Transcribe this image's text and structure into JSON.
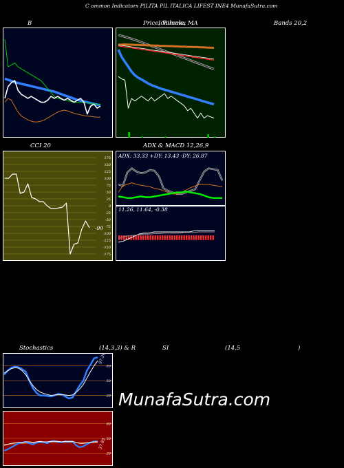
{
  "header": {
    "title": "C                    ommon  Indicators PILITA PIL ITALICA LIFEST INE4  MunafaSutra.com"
  },
  "labels": {
    "bollinger": "B",
    "price": "Price,  Volume,  MA",
    "price_overlap": "Ichimoku",
    "bands": "Bands 20,2",
    "cci": "CCI 20",
    "adx_macd": "ADX  & MACD 12,26,9",
    "stoch_a": "Stochastics",
    "stoch_b": "(14,3,3) & R",
    "stoch_c": "SI",
    "stoch_d": "(14,5",
    "stoch_e": ")",
    "adx_values": "ADX: 33.33  +DY: 13.43 -DY: 26.87",
    "macd_values": "11.26,  11.64,  -0.38",
    "cci_value": "-90",
    "stoch_value": "97.26",
    "rsi_value": "37.85"
  },
  "watermark": "MunafaSutra.com",
  "colors": {
    "panel_navy": "#000522",
    "panel_green": "#002200",
    "panel_olive": "#4a4a0a",
    "panel_red": "#8a0000",
    "blue": "#3080ff",
    "white": "#ffffff",
    "green": "#00cc00",
    "orange": "#d07020",
    "red": "#ff2a2a"
  },
  "chart_data": [
    {
      "name": "bollinger",
      "type": "line",
      "series": [
        {
          "values": [
            85,
            84.7,
            84.4,
            84.1,
            83.9,
            83.7,
            83.5,
            83.3,
            83.1,
            82.9,
            82.7,
            82.5,
            82.3,
            82.1,
            81.9,
            81.7,
            81.4,
            81.1,
            80.8,
            80.5,
            80.2,
            79.9,
            79.6,
            79.4,
            79.2,
            79.0,
            78.8,
            78.6,
            78.4,
            78.2
          ]
        },
        {
          "values": [
            95,
            88,
            88.5,
            89,
            88,
            87.5,
            87,
            86.5,
            86,
            85.5,
            85,
            84.5,
            83.5,
            82.5,
            81.5,
            80.5,
            80,
            79.8,
            79.6,
            79.4,
            79.2,
            79,
            79,
            79,
            78.9,
            78.8,
            78.7,
            78.6,
            78.5,
            78.5
          ]
        },
        {
          "values": [
            79,
            80,
            79.5,
            78,
            76.5,
            75.5,
            75,
            74.5,
            74.2,
            74,
            74,
            74.2,
            74.5,
            75,
            75.5,
            76,
            76.5,
            76.8,
            77,
            76.8,
            76.5,
            76.2,
            76,
            75.8,
            75.6,
            75.5,
            75.4,
            75.3,
            75.2,
            75.2
          ]
        },
        {
          "values": [
            80,
            83,
            84,
            84.5,
            82,
            81,
            80.5,
            80,
            80.5,
            80,
            79.5,
            79,
            79,
            79.5,
            80.5,
            80,
            80.5,
            80,
            79.5,
            80,
            79.5,
            79,
            79.5,
            80,
            79,
            76,
            78,
            78.5,
            77.5,
            78
          ]
        }
      ]
    },
    {
      "name": "price-volume-ma",
      "type": "line",
      "series": [
        {
          "values": [
            97,
            96.6,
            96.2,
            95.8,
            95.4,
            95,
            94.5,
            94,
            93.5,
            93,
            92.5,
            92,
            91.5,
            91,
            90.5,
            90,
            89.5,
            89,
            88.5,
            88,
            87.5,
            87,
            86.5,
            86,
            85.5,
            85,
            84.5,
            84,
            83.5,
            83
          ]
        },
        {
          "values": [
            93,
            93,
            93.1,
            93,
            93,
            92.9,
            92.9,
            92.8,
            92.8,
            92.7,
            92.7,
            92.6,
            92.6,
            92.5,
            92.5,
            92.4,
            92.4,
            92.3,
            92.3,
            92.2,
            92.2,
            92.1,
            92.1,
            92,
            92,
            91.9,
            91.9,
            91.8,
            91.8,
            91.7
          ]
        },
        {
          "values": [
            92.5,
            92.3,
            92.1,
            91.9,
            91.7,
            91.5,
            91.3,
            91.1,
            90.9,
            90.7,
            90.5,
            90.3,
            90.1,
            89.9,
            89.7,
            89.5,
            89.3,
            89.1,
            88.9,
            88.7,
            88.5,
            88.3,
            88.1,
            87.9,
            87.7,
            87.5,
            87.3,
            87.1,
            86.9,
            86.7
          ]
        },
        {
          "values": [
            91,
            88,
            86,
            84,
            82,
            80.5,
            79.5,
            78.8,
            78,
            77.2,
            76.5,
            76,
            75.5,
            75,
            74.6,
            74.2,
            73.8,
            73.4,
            73,
            72.6,
            72.2,
            71.8,
            71.4,
            71,
            70.6,
            70.2,
            69.8,
            69.4,
            69,
            68.6
          ]
        },
        {
          "values": [
            80,
            79,
            78.5,
            67,
            71,
            70,
            71,
            72,
            71,
            70,
            71.5,
            70,
            71,
            72,
            73,
            71,
            72,
            71,
            70,
            69,
            68,
            66,
            67,
            65,
            63,
            65,
            63,
            64,
            63.5,
            63
          ]
        }
      ],
      "volume": [
        0,
        0,
        0,
        5,
        0,
        0,
        0,
        1,
        0,
        0,
        0,
        0,
        0,
        0,
        1,
        0,
        0,
        0,
        0,
        0,
        0,
        0,
        0,
        0,
        0,
        0,
        0,
        3,
        0,
        1
      ]
    },
    {
      "name": "cci",
      "type": "line",
      "ylim": [
        -175,
        175
      ],
      "yticks": [
        175,
        150,
        125,
        100,
        75,
        50,
        25,
        0,
        -25,
        -50,
        -75,
        -100,
        -125,
        -150,
        -175
      ],
      "values": [
        100,
        100,
        115,
        115,
        45,
        50,
        80,
        30,
        25,
        15,
        15,
        0,
        -10,
        -10,
        -8,
        -5,
        10,
        -175,
        -140,
        -135,
        -85,
        -55,
        -80
      ]
    },
    {
      "name": "adx",
      "type": "line",
      "series": [
        {
          "values": [
            30,
            28,
            45,
            50,
            46,
            44,
            45,
            48,
            47,
            40,
            25,
            22,
            20,
            18,
            18,
            20,
            22,
            24,
            35,
            46,
            50,
            49,
            48,
            35
          ]
        },
        {
          "values": [
            20,
            28,
            30,
            32,
            30,
            29,
            28,
            27,
            25,
            24,
            22,
            20,
            18,
            18,
            20,
            23,
            26,
            28,
            30,
            30,
            30,
            29,
            28,
            27
          ]
        },
        {
          "values": [
            15,
            14,
            13,
            13,
            14,
            15,
            14,
            14,
            15,
            16,
            17,
            18,
            19,
            20,
            20,
            21,
            20,
            19,
            18,
            16,
            14,
            13,
            13,
            13
          ]
        }
      ]
    },
    {
      "name": "macd",
      "type": "bar",
      "histogram": [
        -0.4,
        -0.4,
        -0.4,
        -0.4,
        -0.4,
        -0.4,
        -0.4,
        -0.4,
        -0.4,
        -0.4,
        -0.4,
        -0.4,
        -0.4,
        -0.4,
        -0.4,
        -0.4,
        -0.4,
        -0.4,
        -0.4,
        -0.4,
        -0.4,
        -0.4,
        -0.4,
        -0.4,
        -0.4,
        -0.4,
        -0.4,
        -0.4,
        -0.4,
        -0.4,
        -0.4,
        -0.4,
        -0.4,
        -0.4,
        -0.4,
        -0.4,
        -0.4,
        -0.4,
        -0.4,
        -0.4
      ],
      "series": [
        {
          "values": [
            -0.6,
            -0.5,
            -0.3,
            -0.1,
            0.1,
            0.2,
            0.2,
            0.3,
            0.3,
            0.3,
            0.3,
            0.3,
            0.3,
            0.3,
            0.3,
            0.4,
            0.4,
            0.4,
            0.4,
            0.4
          ]
        },
        {
          "values": [
            -0.3,
            -0.1,
            -0.05,
            0,
            0.05,
            0.1,
            0.1,
            0.15,
            0.15,
            0.2,
            0.2,
            0.2,
            0.2,
            0.25,
            0.25,
            0.25,
            0.3,
            0.3,
            0.3,
            0.3
          ]
        }
      ]
    },
    {
      "name": "stochastics",
      "type": "line",
      "ylim": [
        0,
        100
      ],
      "yticks": [
        80,
        50,
        20
      ],
      "series": [
        {
          "values": [
            62,
            70,
            76,
            78,
            77,
            73,
            68,
            50,
            35,
            25,
            20,
            20,
            19,
            18,
            20,
            23,
            22,
            18,
            14,
            16,
            28,
            40,
            50,
            70,
            82,
            95,
            97
          ]
        },
        {
          "values": [
            65,
            70,
            74,
            76,
            75,
            70,
            62,
            50,
            40,
            32,
            27,
            24,
            22,
            20,
            21,
            22,
            22,
            21,
            20,
            21,
            26,
            33,
            42,
            55,
            68,
            80,
            90
          ]
        }
      ]
    },
    {
      "name": "rsi",
      "type": "line",
      "ylim": [
        0,
        100
      ],
      "yticks": [
        80,
        50,
        20
      ],
      "series": [
        {
          "values": [
            38,
            38,
            38.5,
            39,
            39.5,
            40,
            40,
            40.5,
            41,
            41,
            41,
            41.5,
            41.5,
            41.5,
            41.5,
            41.5,
            41.5,
            41.5,
            41.5,
            41.5,
            41.5,
            41.5,
            41.5,
            41.5,
            41.5,
            41.5,
            41.5
          ]
        },
        {
          "values": [
            25,
            28,
            32,
            36,
            40,
            42,
            43,
            40,
            38,
            41,
            43,
            42,
            40,
            44,
            45,
            43,
            42,
            44,
            43,
            44,
            36,
            32,
            34,
            38,
            42,
            44,
            44
          ]
        },
        {
          "values": [
            36,
            38,
            40,
            41,
            42,
            42,
            43,
            43,
            42,
            43,
            44,
            43,
            43,
            44,
            44,
            44,
            43,
            44,
            44,
            44,
            42,
            40,
            40,
            41,
            42,
            43,
            43
          ]
        }
      ]
    }
  ]
}
